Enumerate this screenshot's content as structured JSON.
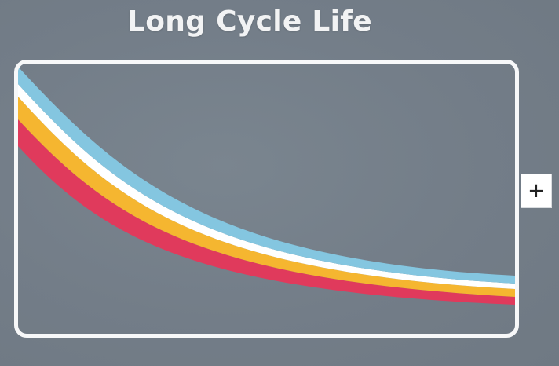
{
  "title": "Long Cycle Life",
  "colors": {
    "background": "#737d88",
    "frame": "#f7f8f9",
    "band_blue": "#84c6e0",
    "band_white": "#ffffff",
    "band_yellow": "#f5b630",
    "band_red": "#e03a5c"
  },
  "plus_button": {
    "label": "+",
    "icon": "plus-icon"
  }
}
